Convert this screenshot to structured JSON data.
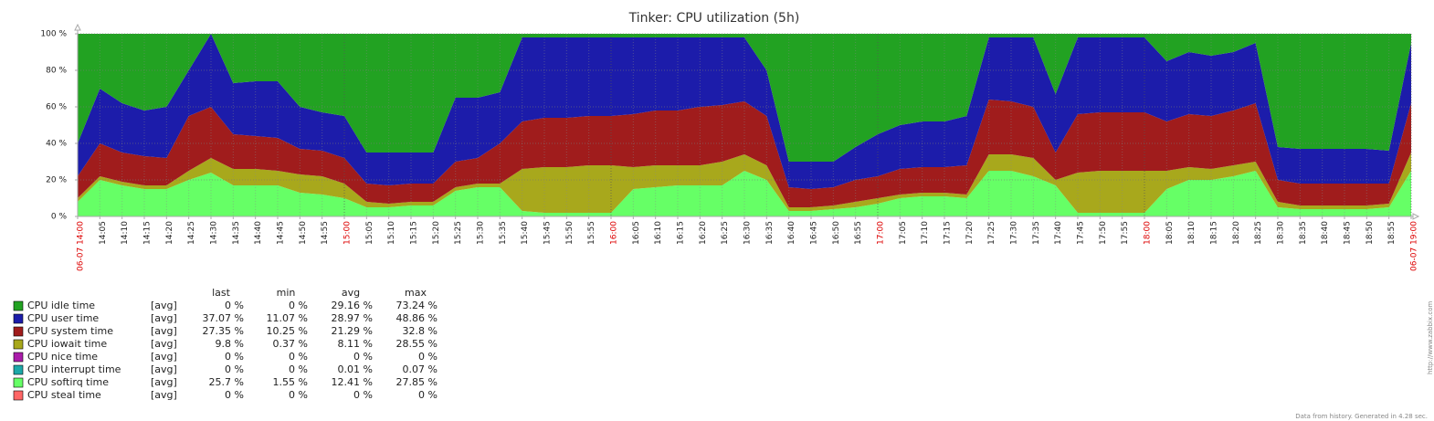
{
  "chart_data": {
    "type": "area",
    "stacked": true,
    "title": "Tinker: CPU utilization (5h)",
    "categories": [
      "06-07 14:00",
      "14:05",
      "14:10",
      "14:15",
      "14:20",
      "14:25",
      "14:30",
      "14:35",
      "14:40",
      "14:45",
      "14:50",
      "14:55",
      "15:00",
      "15:05",
      "15:10",
      "15:15",
      "15:20",
      "15:25",
      "15:30",
      "15:35",
      "15:40",
      "15:45",
      "15:50",
      "15:55",
      "16:00",
      "16:05",
      "16:10",
      "16:15",
      "16:20",
      "16:25",
      "16:30",
      "16:35",
      "16:40",
      "16:45",
      "16:50",
      "16:55",
      "17:00",
      "17:05",
      "17:10",
      "17:15",
      "17:20",
      "17:25",
      "17:30",
      "17:35",
      "17:40",
      "17:45",
      "17:50",
      "17:55",
      "18:00",
      "18:05",
      "18:10",
      "18:15",
      "18:20",
      "18:25",
      "18:30",
      "18:35",
      "18:40",
      "18:45",
      "18:50",
      "18:55",
      "06-07 19:00"
    ],
    "ylim": [
      0,
      100
    ],
    "yticks": [
      {
        "value": 0,
        "label": "0 %"
      },
      {
        "value": 20,
        "label": "20 %"
      },
      {
        "value": 40,
        "label": "40 %"
      },
      {
        "value": 60,
        "label": "60 %"
      },
      {
        "value": 80,
        "label": "80 %"
      },
      {
        "value": 100,
        "label": "100 %"
      }
    ],
    "grid": true,
    "hour_label_color": "#dd0000",
    "legend_columns": [
      "last",
      "min",
      "avg",
      "max"
    ],
    "series": [
      {
        "name": "CPU idle time",
        "color": "#22a222",
        "func": "[avg]",
        "stats": [
          "0 %",
          "0 %",
          "29.16 %",
          "73.24 %"
        ],
        "values": [
          60,
          30,
          38,
          42,
          40,
          20,
          0,
          27,
          26,
          26,
          40,
          43,
          45,
          65,
          65,
          65,
          65,
          35,
          35,
          32,
          2,
          2,
          2,
          2,
          2,
          2,
          2,
          2,
          2,
          2,
          2,
          20,
          70,
          70,
          70,
          62,
          55,
          50,
          48,
          48,
          45,
          2,
          2,
          2,
          33,
          2,
          2,
          2,
          2,
          15,
          10,
          12,
          10,
          5,
          62,
          63,
          63,
          63,
          63,
          64,
          5
        ]
      },
      {
        "name": "CPU user time",
        "color": "#1c1caa",
        "func": "[avg]",
        "stats": [
          "37.07 %",
          "11.07 %",
          "28.97 %",
          "48.86 %"
        ],
        "values": [
          18,
          30,
          27,
          25,
          28,
          25,
          40,
          28,
          30,
          31,
          23,
          21,
          23,
          17,
          18,
          17,
          17,
          35,
          33,
          28,
          46,
          44,
          44,
          43,
          43,
          42,
          40,
          40,
          38,
          37,
          35,
          25,
          14,
          15,
          14,
          18,
          23,
          24,
          25,
          25,
          27,
          34,
          35,
          38,
          32,
          42,
          41,
          41,
          41,
          33,
          34,
          33,
          32,
          33,
          18,
          19,
          19,
          19,
          19,
          18,
          33
        ]
      },
      {
        "name": "CPU system time",
        "color": "#a01c1c",
        "func": "[avg]",
        "stats": [
          "27.35 %",
          "10.25 %",
          "21.29 %",
          "32.8 %"
        ],
        "values": [
          12,
          18,
          16,
          16,
          15,
          30,
          28,
          19,
          18,
          18,
          14,
          14,
          14,
          10,
          10,
          10,
          10,
          14,
          14,
          22,
          26,
          27,
          27,
          27,
          27,
          29,
          30,
          30,
          32,
          31,
          29,
          27,
          11,
          10,
          10,
          12,
          12,
          14,
          14,
          14,
          16,
          30,
          29,
          28,
          15,
          32,
          32,
          32,
          32,
          27,
          29,
          29,
          30,
          32,
          12,
          12,
          12,
          12,
          12,
          11,
          27
        ]
      },
      {
        "name": "CPU iowait time",
        "color": "#a8a81c",
        "func": "[avg]",
        "stats": [
          "9.8 %",
          "0.37 %",
          "8.11 %",
          "28.55 %"
        ],
        "values": [
          2,
          2,
          2,
          2,
          2,
          5,
          8,
          9,
          9,
          8,
          10,
          10,
          8,
          3,
          2,
          2,
          2,
          2,
          2,
          2,
          23,
          25,
          25,
          26,
          26,
          12,
          12,
          11,
          11,
          13,
          9,
          8,
          2,
          2,
          2,
          3,
          3,
          2,
          2,
          2,
          2,
          9,
          9,
          10,
          3,
          22,
          23,
          23,
          23,
          10,
          7,
          6,
          6,
          5,
          3,
          2,
          2,
          2,
          2,
          2,
          10
        ]
      },
      {
        "name": "CPU nice time",
        "color": "#aa1caa",
        "func": "[avg]",
        "stats": [
          "0 %",
          "0 %",
          "0 %",
          "0 %"
        ],
        "values": [
          0,
          0,
          0,
          0,
          0,
          0,
          0,
          0,
          0,
          0,
          0,
          0,
          0,
          0,
          0,
          0,
          0,
          0,
          0,
          0,
          0,
          0,
          0,
          0,
          0,
          0,
          0,
          0,
          0,
          0,
          0,
          0,
          0,
          0,
          0,
          0,
          0,
          0,
          0,
          0,
          0,
          0,
          0,
          0,
          0,
          0,
          0,
          0,
          0,
          0,
          0,
          0,
          0,
          0,
          0,
          0,
          0,
          0,
          0,
          0,
          0
        ]
      },
      {
        "name": "CPU interrupt time",
        "color": "#1ca8a8",
        "func": "[avg]",
        "stats": [
          "0 %",
          "0 %",
          "0.01 %",
          "0.07 %"
        ],
        "values": [
          0,
          0,
          0,
          0,
          0,
          0,
          0,
          0,
          0,
          0,
          0,
          0,
          0,
          0,
          0,
          0,
          0,
          0,
          0,
          0,
          0,
          0,
          0,
          0,
          0,
          0,
          0,
          0,
          0,
          0,
          0,
          0,
          0,
          0,
          0,
          0,
          0,
          0,
          0,
          0,
          0,
          0,
          0,
          0,
          0,
          0,
          0,
          0,
          0,
          0,
          0,
          0,
          0,
          0,
          0,
          0,
          0,
          0,
          0,
          0,
          0
        ]
      },
      {
        "name": "CPU softirq time",
        "color": "#66ff66",
        "func": "[avg]",
        "stats": [
          "25.7 %",
          "1.55 %",
          "12.41 %",
          "27.85 %"
        ],
        "values": [
          8,
          20,
          17,
          15,
          15,
          20,
          24,
          17,
          17,
          17,
          13,
          12,
          10,
          5,
          5,
          6,
          6,
          14,
          16,
          16,
          3,
          2,
          2,
          2,
          2,
          15,
          16,
          17,
          17,
          17,
          25,
          20,
          3,
          3,
          4,
          5,
          7,
          10,
          11,
          11,
          10,
          25,
          25,
          22,
          17,
          2,
          2,
          2,
          2,
          15,
          20,
          20,
          22,
          25,
          5,
          4,
          4,
          4,
          4,
          5,
          25
        ]
      },
      {
        "name": "CPU steal time",
        "color": "#ff6666",
        "func": "[avg]",
        "stats": [
          "0 %",
          "0 %",
          "0 %",
          "0 %"
        ],
        "values": [
          0,
          0,
          0,
          0,
          0,
          0,
          0,
          0,
          0,
          0,
          0,
          0,
          0,
          0,
          0,
          0,
          0,
          0,
          0,
          0,
          0,
          0,
          0,
          0,
          0,
          0,
          0,
          0,
          0,
          0,
          0,
          0,
          0,
          0,
          0,
          0,
          0,
          0,
          0,
          0,
          0,
          0,
          0,
          0,
          0,
          0,
          0,
          0,
          0,
          0,
          0,
          0,
          0,
          0,
          0,
          0,
          0,
          0,
          0,
          0,
          0
        ]
      }
    ],
    "footer": "Data from history. Generated in 4.28 sec.",
    "side_note": "http://www.zabbix.com"
  }
}
